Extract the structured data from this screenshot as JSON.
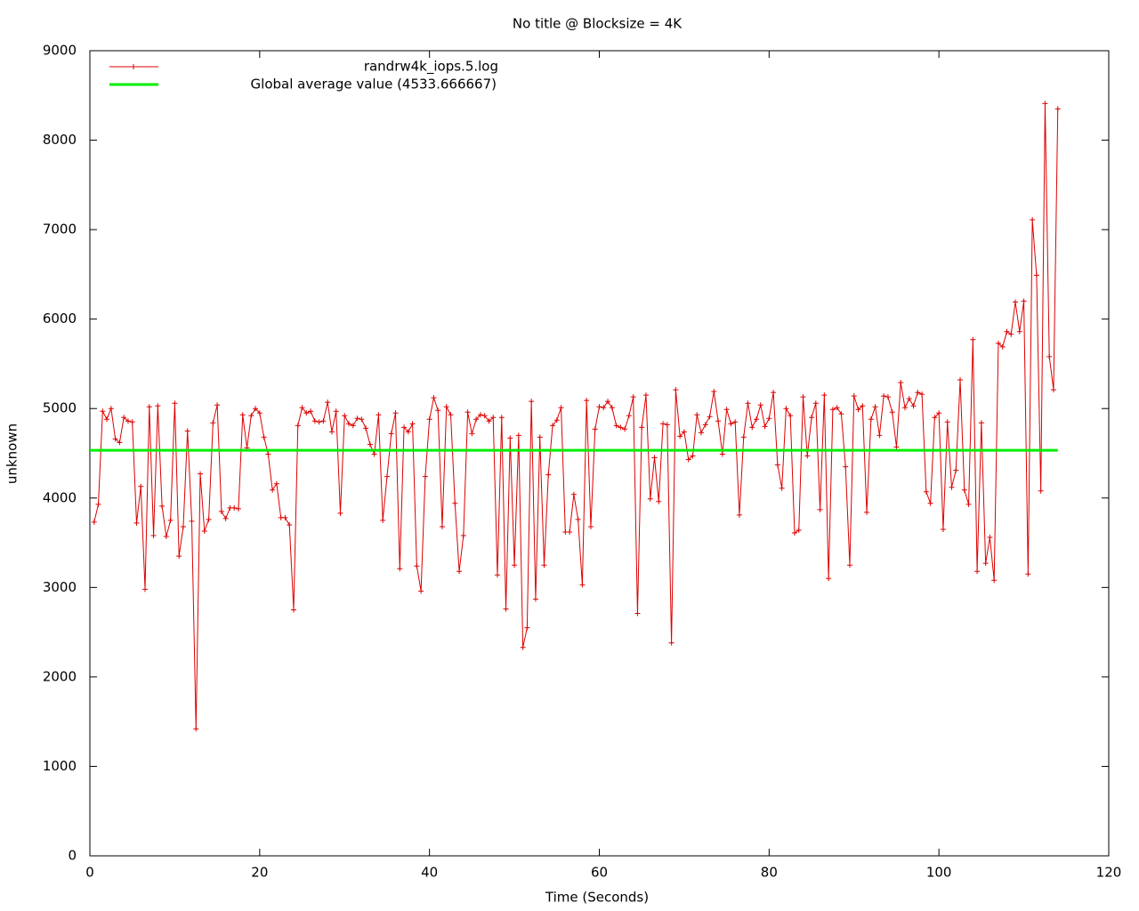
{
  "chart_data": {
    "type": "line",
    "title": "No title @ Blocksize = 4K",
    "x_label": "Time (Seconds)",
    "y_label": "unknown",
    "xlim": [
      0,
      120
    ],
    "xticks": [
      0,
      20,
      40,
      60,
      80,
      100,
      120
    ],
    "ylim": [
      0,
      9000
    ],
    "yticks": [
      0,
      1000,
      2000,
      3000,
      4000,
      5000,
      6000,
      7000,
      8000,
      9000
    ],
    "legend": "upper left",
    "x": [
      0.5,
      1,
      1.5,
      2,
      2.5,
      3,
      3.5,
      4,
      4.5,
      5,
      5.5,
      6,
      6.5,
      7,
      7.5,
      8,
      8.5,
      9,
      9.5,
      10,
      10.5,
      11,
      11.5,
      12,
      12.5,
      13,
      13.5,
      14,
      14.5,
      15,
      15.5,
      16,
      16.5,
      17,
      17.5,
      18,
      18.5,
      19,
      19.5,
      20,
      20.5,
      21,
      21.5,
      22,
      22.5,
      23,
      23.5,
      24,
      24.5,
      25,
      25.5,
      26,
      26.5,
      27,
      27.5,
      28,
      28.5,
      29,
      29.5,
      30,
      30.5,
      31,
      31.5,
      32,
      32.5,
      33,
      33.5,
      34,
      34.5,
      35,
      35.5,
      36,
      36.5,
      37,
      37.5,
      38,
      38.5,
      39,
      39.5,
      40,
      40.5,
      41,
      41.5,
      42,
      42.5,
      43,
      43.5,
      44,
      44.5,
      45,
      45.5,
      46,
      46.5,
      47,
      47.5,
      48,
      48.5,
      49,
      49.5,
      50,
      50.5,
      51,
      51.5,
      52,
      52.5,
      53,
      53.5,
      54,
      54.5,
      55,
      55.5,
      56,
      56.5,
      57,
      57.5,
      58,
      58.5,
      59,
      59.5,
      60,
      60.5,
      61,
      61.5,
      62,
      62.5,
      63,
      63.5,
      64,
      64.5,
      65,
      65.5,
      66,
      66.5,
      67,
      67.5,
      68,
      68.5,
      69,
      69.5,
      70,
      70.5,
      71,
      71.5,
      72,
      72.5,
      73,
      73.5,
      74,
      74.5,
      75,
      75.5,
      76,
      76.5,
      77,
      77.5,
      78,
      78.5,
      79,
      79.5,
      80,
      80.5,
      81,
      81.5,
      82,
      82.5,
      83,
      83.5,
      84,
      84.5,
      85,
      85.5,
      86,
      86.5,
      87,
      87.5,
      88,
      88.5,
      89,
      89.5,
      90,
      90.5,
      91,
      91.5,
      92,
      92.5,
      93,
      93.5,
      94,
      94.5,
      95,
      95.5,
      96,
      96.5,
      97,
      97.5,
      98,
      98.5,
      99,
      99.5,
      100,
      100.5,
      101,
      101.5,
      102,
      102.5,
      103,
      103.5,
      104,
      104.5,
      105,
      105.5,
      106,
      106.5,
      107,
      107.5,
      108,
      108.5,
      109,
      109.5,
      110,
      110.5,
      111,
      111.5,
      112,
      112.5,
      113,
      113.5,
      114
    ],
    "series": [
      {
        "name": "randrw4k_iops.5.log",
        "color": "#dd0000",
        "values": [
          3730,
          3930,
          4970,
          4880,
          5000,
          4660,
          4620,
          4900,
          4860,
          4850,
          3720,
          4130,
          2980,
          5020,
          3580,
          5030,
          3910,
          3570,
          3750,
          5060,
          3350,
          3680,
          4750,
          3740,
          1420,
          4270,
          3630,
          3760,
          4840,
          5040,
          3850,
          3770,
          3890,
          3890,
          3880,
          4930,
          4560,
          4920,
          5000,
          4950,
          4680,
          4490,
          4090,
          4160,
          3780,
          3780,
          3700,
          2750,
          4810,
          5010,
          4950,
          4970,
          4860,
          4850,
          4860,
          5070,
          4740,
          4970,
          3830,
          4920,
          4830,
          4810,
          4890,
          4880,
          4780,
          4600,
          4490,
          4930,
          3750,
          4240,
          4720,
          4950,
          3210,
          4790,
          4740,
          4830,
          3240,
          2960,
          4240,
          4880,
          5120,
          4980,
          3680,
          5020,
          4930,
          3940,
          3180,
          3580,
          4960,
          4720,
          4880,
          4930,
          4920,
          4860,
          4900,
          3140,
          4900,
          2760,
          4670,
          3250,
          4700,
          2330,
          2550,
          5080,
          2870,
          4680,
          3250,
          4260,
          4810,
          4870,
          5010,
          3620,
          3620,
          4040,
          3760,
          3030,
          5090,
          3680,
          4770,
          5020,
          5010,
          5080,
          5010,
          4810,
          4790,
          4770,
          4920,
          5130,
          2710,
          4790,
          5150,
          3990,
          4450,
          3960,
          4830,
          4820,
          2380,
          5210,
          4690,
          4740,
          4430,
          4470,
          4930,
          4730,
          4820,
          4910,
          5190,
          4860,
          4490,
          4990,
          4830,
          4850,
          3810,
          4680,
          5060,
          4790,
          4880,
          5040,
          4800,
          4890,
          5180,
          4370,
          4110,
          5000,
          4920,
          3610,
          3640,
          5130,
          4470,
          4900,
          5060,
          3870,
          5150,
          3100,
          4990,
          5010,
          4940,
          4350,
          3250,
          5140,
          4990,
          5030,
          3840,
          4880,
          5020,
          4700,
          5140,
          5130,
          4960,
          4570,
          5290,
          5010,
          5110,
          5030,
          5180,
          5160,
          4070,
          3940,
          4900,
          4950,
          3650,
          4850,
          4120,
          4310,
          5320,
          4090,
          3930,
          5770,
          3180,
          4840,
          3270,
          3560,
          3080,
          5730,
          5690,
          5860,
          5830,
          6190,
          5860,
          6200,
          3150,
          7110,
          6490,
          4080,
          8410,
          5580,
          5210,
          8350
        ]
      }
    ],
    "average": {
      "name": "Global average value (4533.666667)",
      "color": "#00ee00",
      "value": 4533.666667
    }
  }
}
